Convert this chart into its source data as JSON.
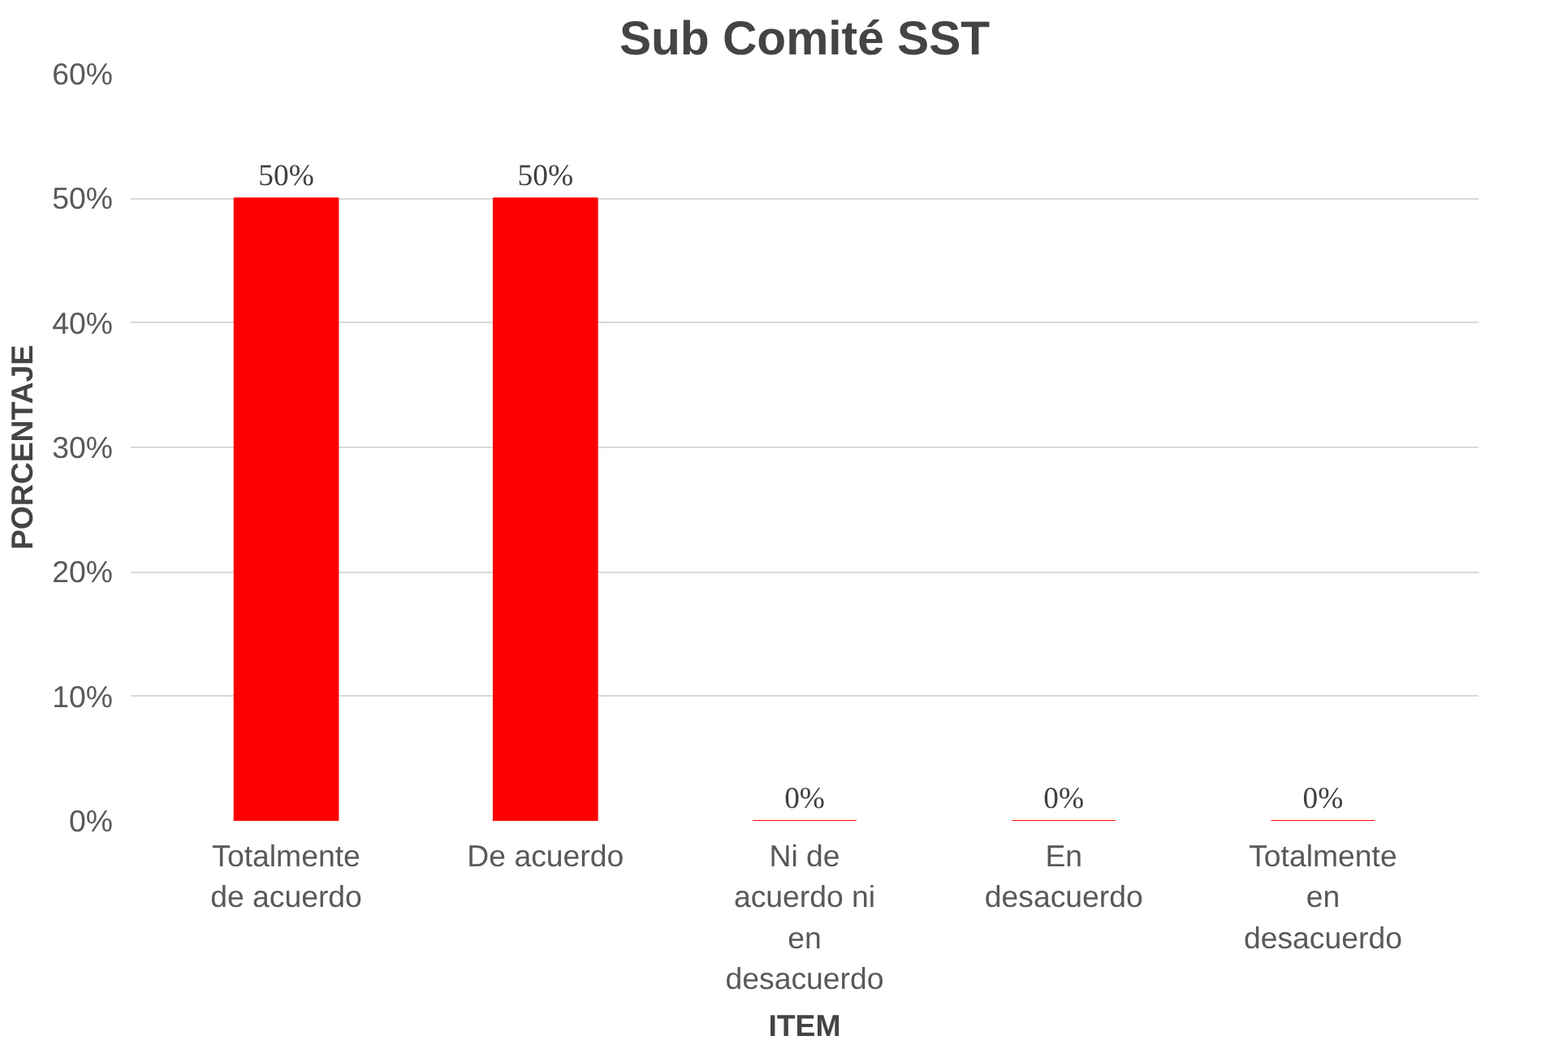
{
  "chart_data": {
    "type": "bar",
    "title": "Sub Comité SST",
    "xlabel": "ITEM",
    "ylabel": "PORCENTAJE",
    "categories": [
      "Totalmente de acuerdo",
      "De acuerdo",
      "Ni de acuerdo ni en desacuerdo",
      "En desacuerdo",
      "Totalmente en desacuerdo"
    ],
    "values": [
      50,
      50,
      0,
      0,
      0
    ],
    "color": "#ff0000",
    "value_labels": [
      "50%",
      "50%",
      "0%",
      "0%",
      "0%"
    ],
    "ylim": [
      0,
      60
    ],
    "yticks": [
      {
        "value": 0,
        "label": "0%"
      },
      {
        "value": 10,
        "label": "10%"
      },
      {
        "value": 20,
        "label": "20%"
      },
      {
        "value": 30,
        "label": "30%"
      },
      {
        "value": 40,
        "label": "40%"
      },
      {
        "value": 50,
        "label": "50%"
      },
      {
        "value": 60,
        "label": "60%"
      }
    ],
    "grid": "y"
  }
}
